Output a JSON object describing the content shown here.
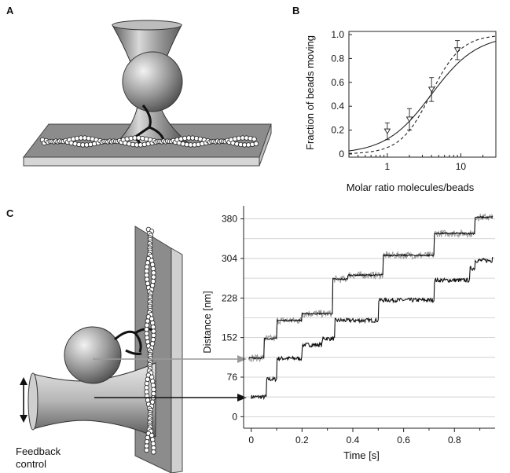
{
  "panels": {
    "a": "A",
    "b": "B",
    "c": "C"
  },
  "feedback_label": [
    "Feedback",
    "control"
  ],
  "chart_data": [
    {
      "type": "scatter",
      "panel": "B",
      "xlabel": "Molar ratio molecules/beads",
      "ylabel": "Fraction of beads moving",
      "x_scale": "log",
      "xlim": [
        0.3,
        30
      ],
      "ylim": [
        0,
        1.0
      ],
      "xticks": [
        1,
        10
      ],
      "xtick_labels": [
        "1",
        "10"
      ],
      "yticks": [
        0,
        0.2,
        0.4,
        0.6,
        0.8,
        1.0
      ],
      "ytick_labels": [
        "0",
        "0.2",
        "0.4",
        "0.6",
        "0.8",
        "1.0"
      ],
      "points": [
        {
          "x": 1.0,
          "y": 0.19,
          "err": 0.07
        },
        {
          "x": 2.0,
          "y": 0.29,
          "err": 0.09
        },
        {
          "x": 4.0,
          "y": 0.54,
          "err": 0.1
        },
        {
          "x": 9.0,
          "y": 0.87,
          "err": 0.08
        }
      ],
      "fits": [
        {
          "style": "solid",
          "x50": 4.0,
          "hill": 1.4
        },
        {
          "style": "dashed",
          "x50": 3.9,
          "hill": 2.1
        }
      ]
    },
    {
      "type": "line",
      "panel": "C",
      "xlabel": "Time [s]",
      "ylabel": "Distance [nm]",
      "xlim": [
        -0.03,
        0.96
      ],
      "ylim": [
        -10,
        405
      ],
      "xticks": [
        0,
        0.2,
        0.4,
        0.6,
        0.8
      ],
      "xtick_labels": [
        "0",
        "0.2",
        "0.4",
        "0.6",
        "0.8"
      ],
      "yticks": [
        0,
        76,
        152,
        228,
        304,
        380
      ],
      "ytick_labels": [
        "0",
        "76",
        "152",
        "228",
        "304",
        "380"
      ],
      "grid_y": [
        0,
        38,
        76,
        114,
        152,
        190,
        228,
        266,
        304,
        342,
        380
      ],
      "series": [
        {
          "color": "#111111",
          "steps": [
            {
              "t": 0.0,
              "y": 38
            },
            {
              "t": 0.06,
              "y": 72
            },
            {
              "t": 0.1,
              "y": 112
            },
            {
              "t": 0.2,
              "y": 138
            },
            {
              "t": 0.28,
              "y": 150
            },
            {
              "t": 0.33,
              "y": 185
            },
            {
              "t": 0.5,
              "y": 224
            },
            {
              "t": 0.72,
              "y": 262
            },
            {
              "t": 0.86,
              "y": 285
            },
            {
              "t": 0.88,
              "y": 300
            },
            {
              "t": 0.95,
              "y": 308
            }
          ]
        },
        {
          "color": "#9a9a9a",
          "steps": [
            {
              "t": -0.01,
              "y": 113
            },
            {
              "t": 0.05,
              "y": 150
            },
            {
              "t": 0.1,
              "y": 185
            },
            {
              "t": 0.2,
              "y": 198
            },
            {
              "t": 0.32,
              "y": 264
            },
            {
              "t": 0.38,
              "y": 272
            },
            {
              "t": 0.52,
              "y": 310
            },
            {
              "t": 0.72,
              "y": 352
            },
            {
              "t": 0.88,
              "y": 383
            },
            {
              "t": 0.95,
              "y": 386
            }
          ]
        },
        {
          "color": "#111111",
          "steps": [
            {
              "t": -0.01,
              "y": 113
            },
            {
              "t": 0.05,
              "y": 150
            },
            {
              "t": 0.1,
              "y": 185
            },
            {
              "t": 0.2,
              "y": 198
            },
            {
              "t": 0.32,
              "y": 264
            },
            {
              "t": 0.38,
              "y": 272
            },
            {
              "t": 0.52,
              "y": 310
            },
            {
              "t": 0.72,
              "y": 352
            },
            {
              "t": 0.88,
              "y": 383
            },
            {
              "t": 0.95,
              "y": 386
            }
          ]
        }
      ]
    }
  ]
}
